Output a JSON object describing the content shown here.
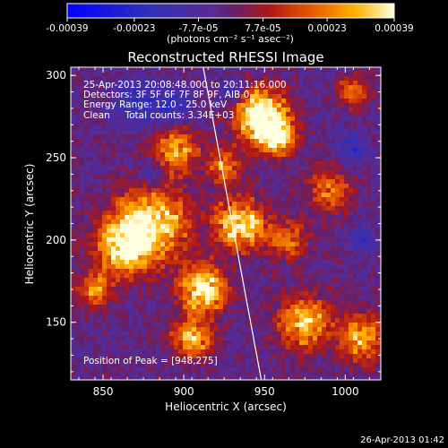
{
  "chart_data": {
    "type": "heatmap",
    "title": "Reconstructed RHESSI Image",
    "xlabel": "Heliocentric X (arcsec)",
    "ylabel": "Heliocentric Y (arcsec)",
    "xlim": [
      830,
      1022
    ],
    "ylim": [
      115,
      305
    ],
    "x_ticks": [
      850,
      900,
      950,
      1000
    ],
    "y_ticks": [
      150,
      200,
      250,
      300
    ],
    "colorbar": {
      "ticks": [
        {
          "value": -0.00039,
          "label": "-0.00039"
        },
        {
          "value": -0.00023,
          "label": "-0.00023"
        },
        {
          "value": -7.7e-05,
          "label": "-7.7e-05"
        },
        {
          "value": 7.7e-05,
          "label": "7.7e-05"
        },
        {
          "value": 0.00023,
          "label": "0.00023"
        },
        {
          "value": 0.00039,
          "label": "0.00039"
        }
      ],
      "range": [
        -0.00039,
        0.00039
      ],
      "unit_label": "(photons cm⁻² s⁻¹ asec⁻²)"
    },
    "annotations": {
      "time_range": "25-Apr-2013 20:08:48.000 to 20:11:16.000",
      "detectors": "Detectors: 3F 5F 6F 7F 8F 9F, AIB 0",
      "energy": "Energy Range: 12.0 - 25.0 keV",
      "method": "Clean     Total counts: 3.34E+03",
      "peak": "Position of Peak = [948,275]"
    },
    "limb_line": {
      "x": [
        912,
        948
      ],
      "y": [
        305,
        115
      ]
    },
    "peak_position": [
      948,
      275
    ]
  },
  "footer": {
    "timestamp": "26-Apr-2013 01:42"
  }
}
